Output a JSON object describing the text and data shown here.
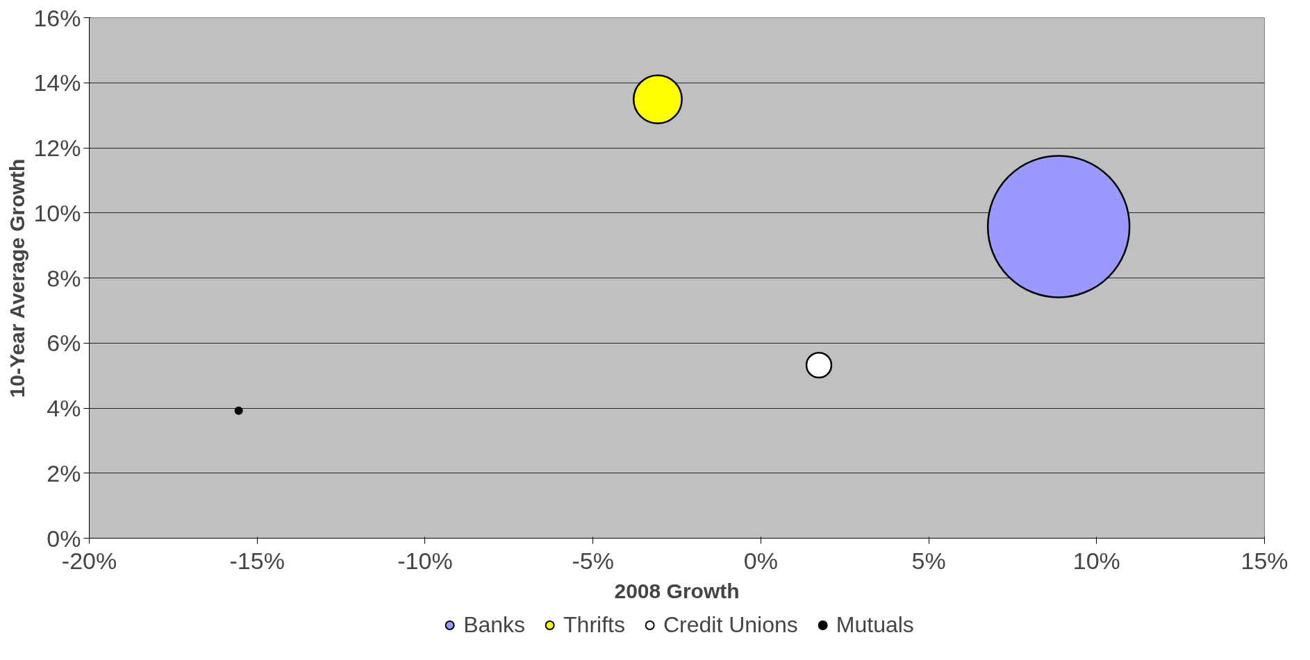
{
  "chart_data": {
    "type": "bubble",
    "xlabel": "2008 Growth",
    "ylabel": "10-Year Average Growth",
    "series": [
      {
        "name": "Banks",
        "color": "#9999ff",
        "x": [
          8.87
        ],
        "values": [
          9.58
        ],
        "sizes": [
          1
        ]
      },
      {
        "name": "Thrifts",
        "color": "#ffff00",
        "x": [
          -3.07
        ],
        "values": [
          13.49
        ],
        "sizes": [
          0.116
        ]
      },
      {
        "name": "Credit Unions",
        "color": "#ffffff",
        "x": [
          1.73
        ],
        "values": [
          5.32
        ],
        "sizes": [
          0.031
        ]
      },
      {
        "name": "Mutuals",
        "color": "#000000",
        "x": [
          -15.55
        ],
        "values": [
          3.92
        ],
        "sizes": [
          0.0022
        ]
      }
    ],
    "xlim": [
      -20,
      15
    ],
    "xticks": [
      {
        "value": -20,
        "label": "-20%"
      },
      {
        "value": -15,
        "label": "-15%"
      },
      {
        "value": -10,
        "label": "-10%"
      },
      {
        "value": -5,
        "label": "-5%"
      },
      {
        "value": 0,
        "label": "0%"
      },
      {
        "value": 5,
        "label": "5%"
      },
      {
        "value": 10,
        "label": "10%"
      },
      {
        "value": 15,
        "label": "15%"
      }
    ],
    "ylim": [
      0,
      16
    ],
    "yticks": [
      {
        "value": 0,
        "label": "0%"
      },
      {
        "value": 2,
        "label": "2%"
      },
      {
        "value": 4,
        "label": "4%"
      },
      {
        "value": 6,
        "label": "6%"
      },
      {
        "value": 8,
        "label": "8%"
      },
      {
        "value": 10,
        "label": "10%"
      },
      {
        "value": 12,
        "label": "12%"
      },
      {
        "value": 14,
        "label": "14%"
      },
      {
        "value": 16,
        "label": "16%"
      }
    ],
    "grid": "y",
    "legend": "bottom"
  }
}
